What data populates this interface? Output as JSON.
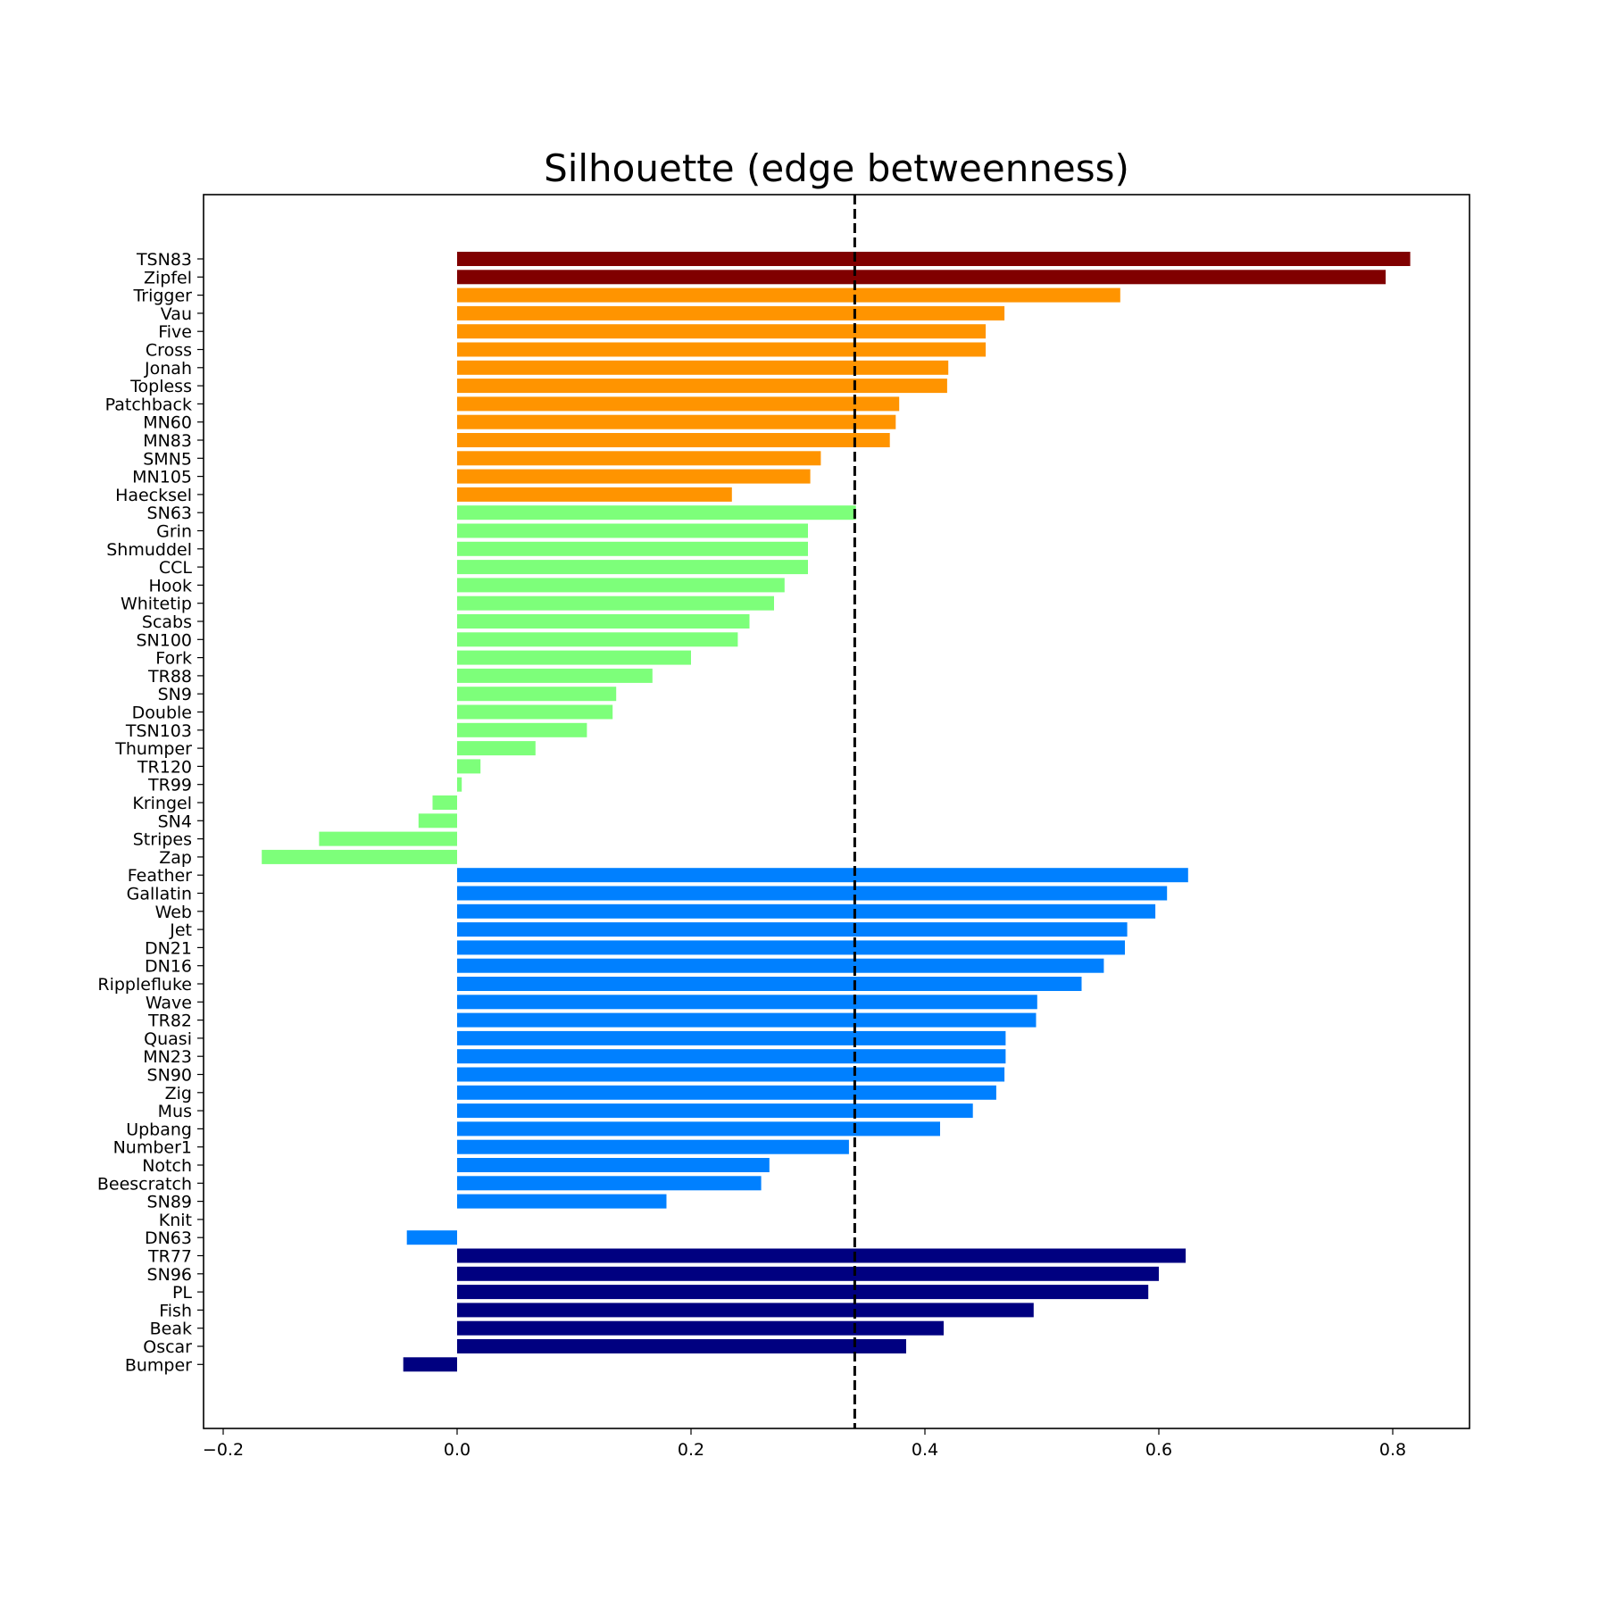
{
  "chart_data": {
    "type": "bar",
    "orientation": "horizontal",
    "title": "Silhouette (edge betweenness)",
    "xlabel": "",
    "ylabel": "",
    "xlim": [
      -0.2,
      0.86
    ],
    "xticks": [
      -0.2,
      0.0,
      0.2,
      0.4,
      0.6,
      0.8
    ],
    "xtick_labels": [
      "−0.2",
      "0.0",
      "0.2",
      "0.4",
      "0.6",
      "0.8"
    ],
    "grid": false,
    "reference_line": {
      "x": 0.34,
      "style": "dashed",
      "color": "#000000"
    },
    "colors": {
      "cluster_dark_red": "#800000",
      "cluster_orange": "#ff9400",
      "cluster_green": "#7dff7a",
      "cluster_blue": "#0080ff",
      "cluster_navy": "#000080"
    },
    "categories": [
      "TSN83",
      "Zipfel",
      "Trigger",
      "Vau",
      "Five",
      "Cross",
      "Jonah",
      "Topless",
      "Patchback",
      "MN60",
      "MN83",
      "SMN5",
      "MN105",
      "Haecksel",
      "SN63",
      "Grin",
      "Shmuddel",
      "CCL",
      "Hook",
      "Whitetip",
      "Scabs",
      "SN100",
      "Fork",
      "TR88",
      "SN9",
      "Double",
      "TSN103",
      "Thumper",
      "TR120",
      "TR99",
      "Kringel",
      "SN4",
      "Stripes",
      "Zap",
      "Feather",
      "Gallatin",
      "Web",
      "Jet",
      "DN21",
      "DN16",
      "Ripplefluke",
      "Wave",
      "TR82",
      "Quasi",
      "MN23",
      "SN90",
      "Zig",
      "Mus",
      "Upbang",
      "Number1",
      "Notch",
      "Beescratch",
      "SN89",
      "Knit",
      "DN63",
      "TR77",
      "SN96",
      "PL",
      "Fish",
      "Beak",
      "Oscar",
      "Bumper"
    ],
    "values": [
      0.815,
      0.794,
      0.567,
      0.468,
      0.452,
      0.452,
      0.42,
      0.419,
      0.378,
      0.375,
      0.37,
      0.311,
      0.302,
      0.235,
      0.341,
      0.3,
      0.3,
      0.3,
      0.28,
      0.271,
      0.25,
      0.24,
      0.2,
      0.167,
      0.136,
      0.133,
      0.111,
      0.067,
      0.02,
      0.004,
      -0.021,
      -0.033,
      -0.118,
      -0.167,
      0.625,
      0.607,
      0.597,
      0.573,
      0.571,
      0.553,
      0.534,
      0.496,
      0.495,
      0.469,
      0.469,
      0.468,
      0.461,
      0.441,
      0.413,
      0.335,
      0.267,
      0.26,
      0.179,
      0.0,
      -0.043,
      0.623,
      0.6,
      0.591,
      0.493,
      0.416,
      0.384,
      -0.046
    ],
    "bar_colors": [
      "#800000",
      "#800000",
      "#ff9400",
      "#ff9400",
      "#ff9400",
      "#ff9400",
      "#ff9400",
      "#ff9400",
      "#ff9400",
      "#ff9400",
      "#ff9400",
      "#ff9400",
      "#ff9400",
      "#ff9400",
      "#7dff7a",
      "#7dff7a",
      "#7dff7a",
      "#7dff7a",
      "#7dff7a",
      "#7dff7a",
      "#7dff7a",
      "#7dff7a",
      "#7dff7a",
      "#7dff7a",
      "#7dff7a",
      "#7dff7a",
      "#7dff7a",
      "#7dff7a",
      "#7dff7a",
      "#7dff7a",
      "#7dff7a",
      "#7dff7a",
      "#7dff7a",
      "#7dff7a",
      "#0080ff",
      "#0080ff",
      "#0080ff",
      "#0080ff",
      "#0080ff",
      "#0080ff",
      "#0080ff",
      "#0080ff",
      "#0080ff",
      "#0080ff",
      "#0080ff",
      "#0080ff",
      "#0080ff",
      "#0080ff",
      "#0080ff",
      "#0080ff",
      "#0080ff",
      "#0080ff",
      "#0080ff",
      "#0080ff",
      "#0080ff",
      "#000080",
      "#000080",
      "#000080",
      "#000080",
      "#000080",
      "#000080",
      "#000080"
    ]
  }
}
